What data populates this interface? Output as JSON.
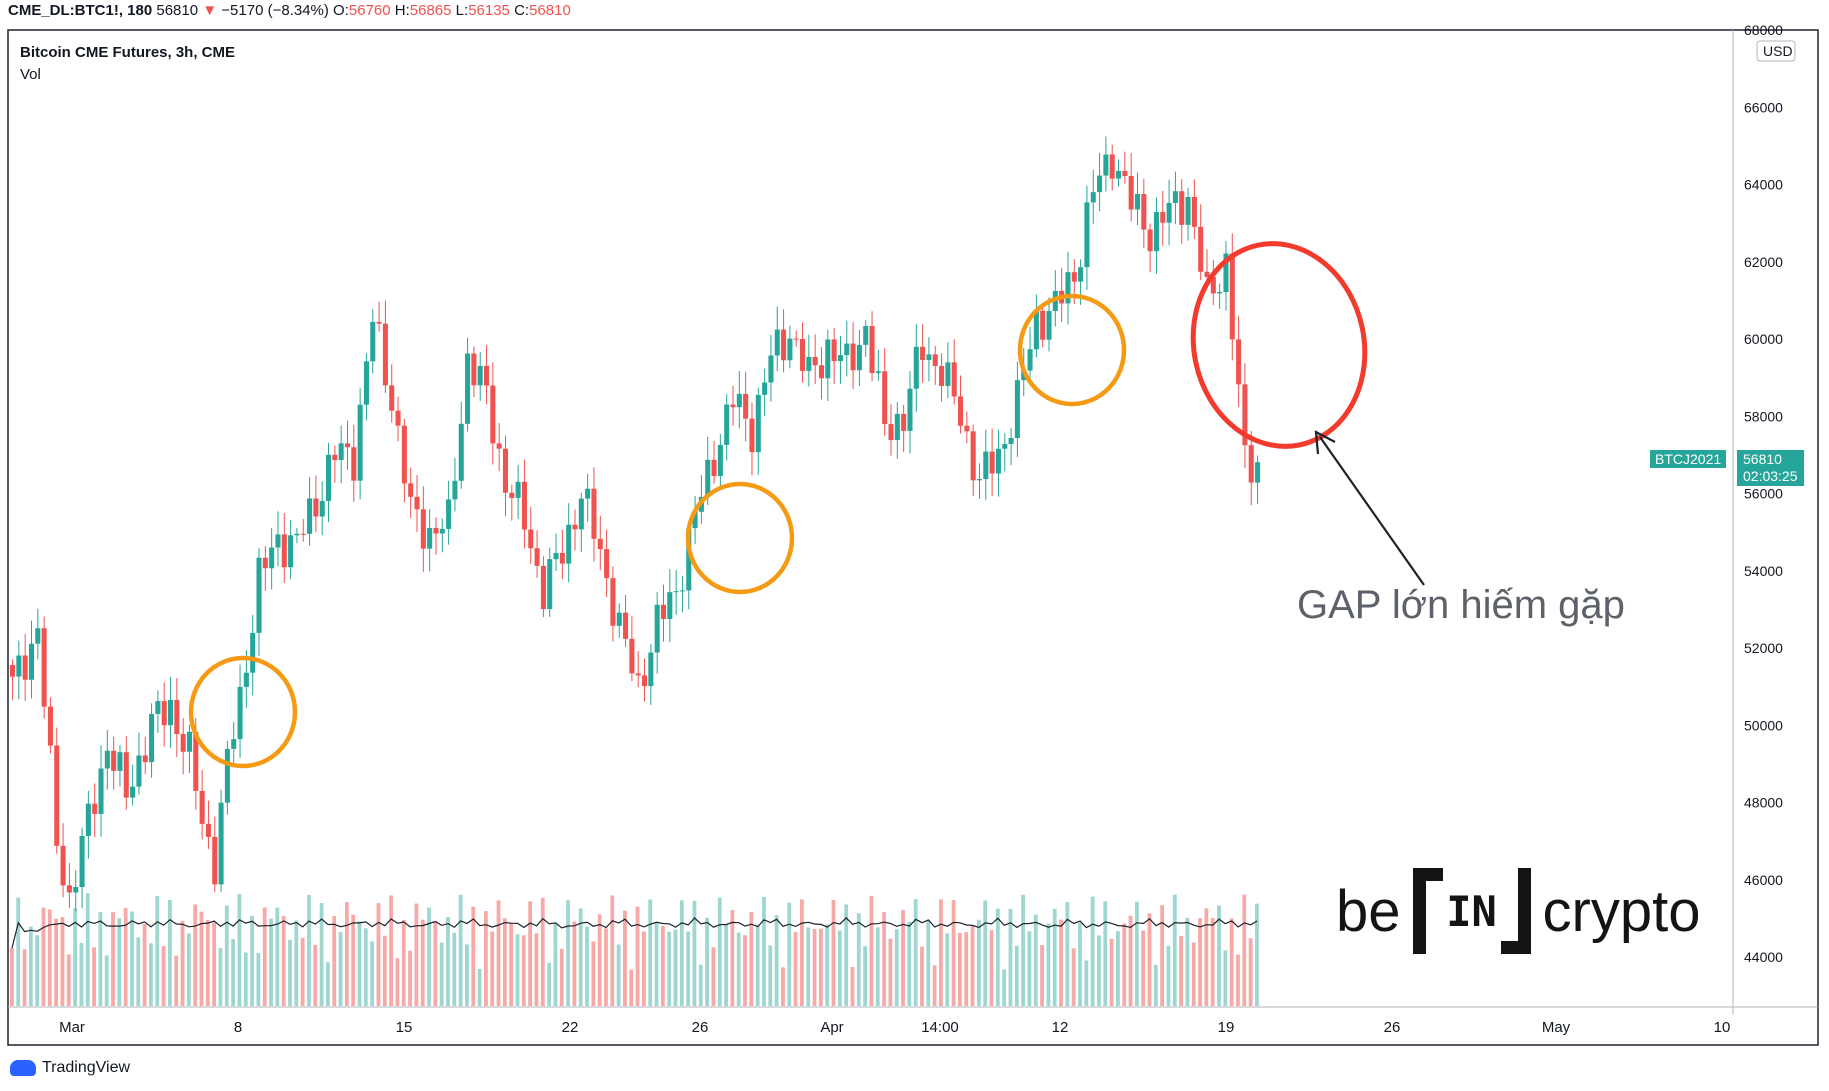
{
  "header": {
    "symbol": "CME_DL:BTC1!, 180",
    "last": "56810",
    "arrow": "▼",
    "change": "−5170 (−8.34%)",
    "o_label": "O:",
    "o_value": "56760",
    "h_label": "H:",
    "h_value": "56865",
    "l_label": "L:",
    "l_value": "56135",
    "c_label": "C:",
    "c_value": "56810"
  },
  "legend": {
    "title": "Bitcoin CME Futures, 3h, CME",
    "volume": "Vol"
  },
  "price_axis": {
    "currency": "USD"
  },
  "badges": {
    "contract": "BTCJ2021",
    "price": "56810",
    "countdown": "02:03:25"
  },
  "annotation": {
    "text": "GAP lớn hiếm gặp"
  },
  "watermark": {
    "left": "be",
    "box": "IN",
    "right": "crypto"
  },
  "footer": {
    "brand": "TradingView"
  },
  "colors": {
    "up": "#26a69a",
    "down": "#ef5350",
    "gap_circle": "#f23a2d",
    "small_gap_circle": "#f59a12"
  },
  "chart_data": {
    "type": "candlestick",
    "title": "Bitcoin CME Futures, 3h, CME",
    "timeframe": "3h",
    "x_ticks": [
      "Mar",
      "8",
      "15",
      "22",
      "26",
      "Apr",
      "14:00",
      "12",
      "19",
      "26",
      "May",
      "10"
    ],
    "y_ticks": [
      44000,
      46000,
      48000,
      50000,
      52000,
      54000,
      56000,
      58000,
      60000,
      62000,
      64000,
      66000,
      68000
    ],
    "ylim": [
      42500,
      68000
    ],
    "grid": false,
    "path": [
      [
        0,
        51000
      ],
      [
        4,
        52500
      ],
      [
        7,
        47000
      ],
      [
        9,
        45500
      ],
      [
        12,
        47500
      ],
      [
        15,
        49500
      ],
      [
        18,
        48200
      ],
      [
        22,
        50000
      ],
      [
        25,
        50500
      ],
      [
        28,
        49200
      ],
      [
        30,
        47500
      ],
      [
        32,
        46500
      ],
      [
        34,
        49000
      ],
      [
        36,
        50700
      ],
      [
        39,
        53800
      ],
      [
        42,
        54800
      ],
      [
        45,
        54700
      ],
      [
        48,
        55800
      ],
      [
        51,
        57000
      ],
      [
        54,
        57000
      ],
      [
        57,
        60500
      ],
      [
        60,
        58500
      ],
      [
        63,
        55500
      ],
      [
        66,
        55000
      ],
      [
        69,
        55200
      ],
      [
        72,
        59500
      ],
      [
        75,
        58500
      ],
      [
        78,
        56300
      ],
      [
        81,
        55300
      ],
      [
        84,
        53500
      ],
      [
        87,
        54500
      ],
      [
        90,
        56000
      ],
      [
        93,
        54500
      ],
      [
        96,
        52500
      ],
      [
        99,
        51000
      ],
      [
        102,
        52600
      ],
      [
        105,
        53500
      ],
      [
        108,
        55400
      ],
      [
        111,
        57000
      ],
      [
        114,
        58400
      ],
      [
        117,
        57700
      ],
      [
        120,
        59500
      ],
      [
        123,
        60200
      ],
      [
        126,
        59000
      ],
      [
        129,
        59800
      ],
      [
        132,
        59300
      ],
      [
        135,
        60300
      ],
      [
        138,
        57700
      ],
      [
        141,
        58000
      ],
      [
        144,
        59800
      ],
      [
        147,
        59200
      ],
      [
        150,
        58000
      ],
      [
        153,
        56300
      ],
      [
        156,
        57000
      ],
      [
        159,
        58400
      ],
      [
        162,
        60500
      ],
      [
        165,
        60800
      ],
      [
        168,
        61700
      ],
      [
        171,
        63800
      ],
      [
        174,
        64800
      ],
      [
        177,
        63500
      ],
      [
        180,
        62800
      ],
      [
        183,
        63300
      ],
      [
        186,
        63700
      ],
      [
        189,
        61000
      ],
      [
        192,
        62000
      ],
      [
        195,
        56800
      ],
      [
        197,
        56810
      ]
    ],
    "gaps": [
      {
        "label": "small",
        "highlighted": true
      },
      {
        "label": "small",
        "highlighted": true
      },
      {
        "label": "small",
        "highlighted": true
      },
      {
        "label": "GAP lớn hiếm gặp",
        "highlighted": true
      }
    ],
    "volume_ma": true,
    "last_price": 56810
  }
}
